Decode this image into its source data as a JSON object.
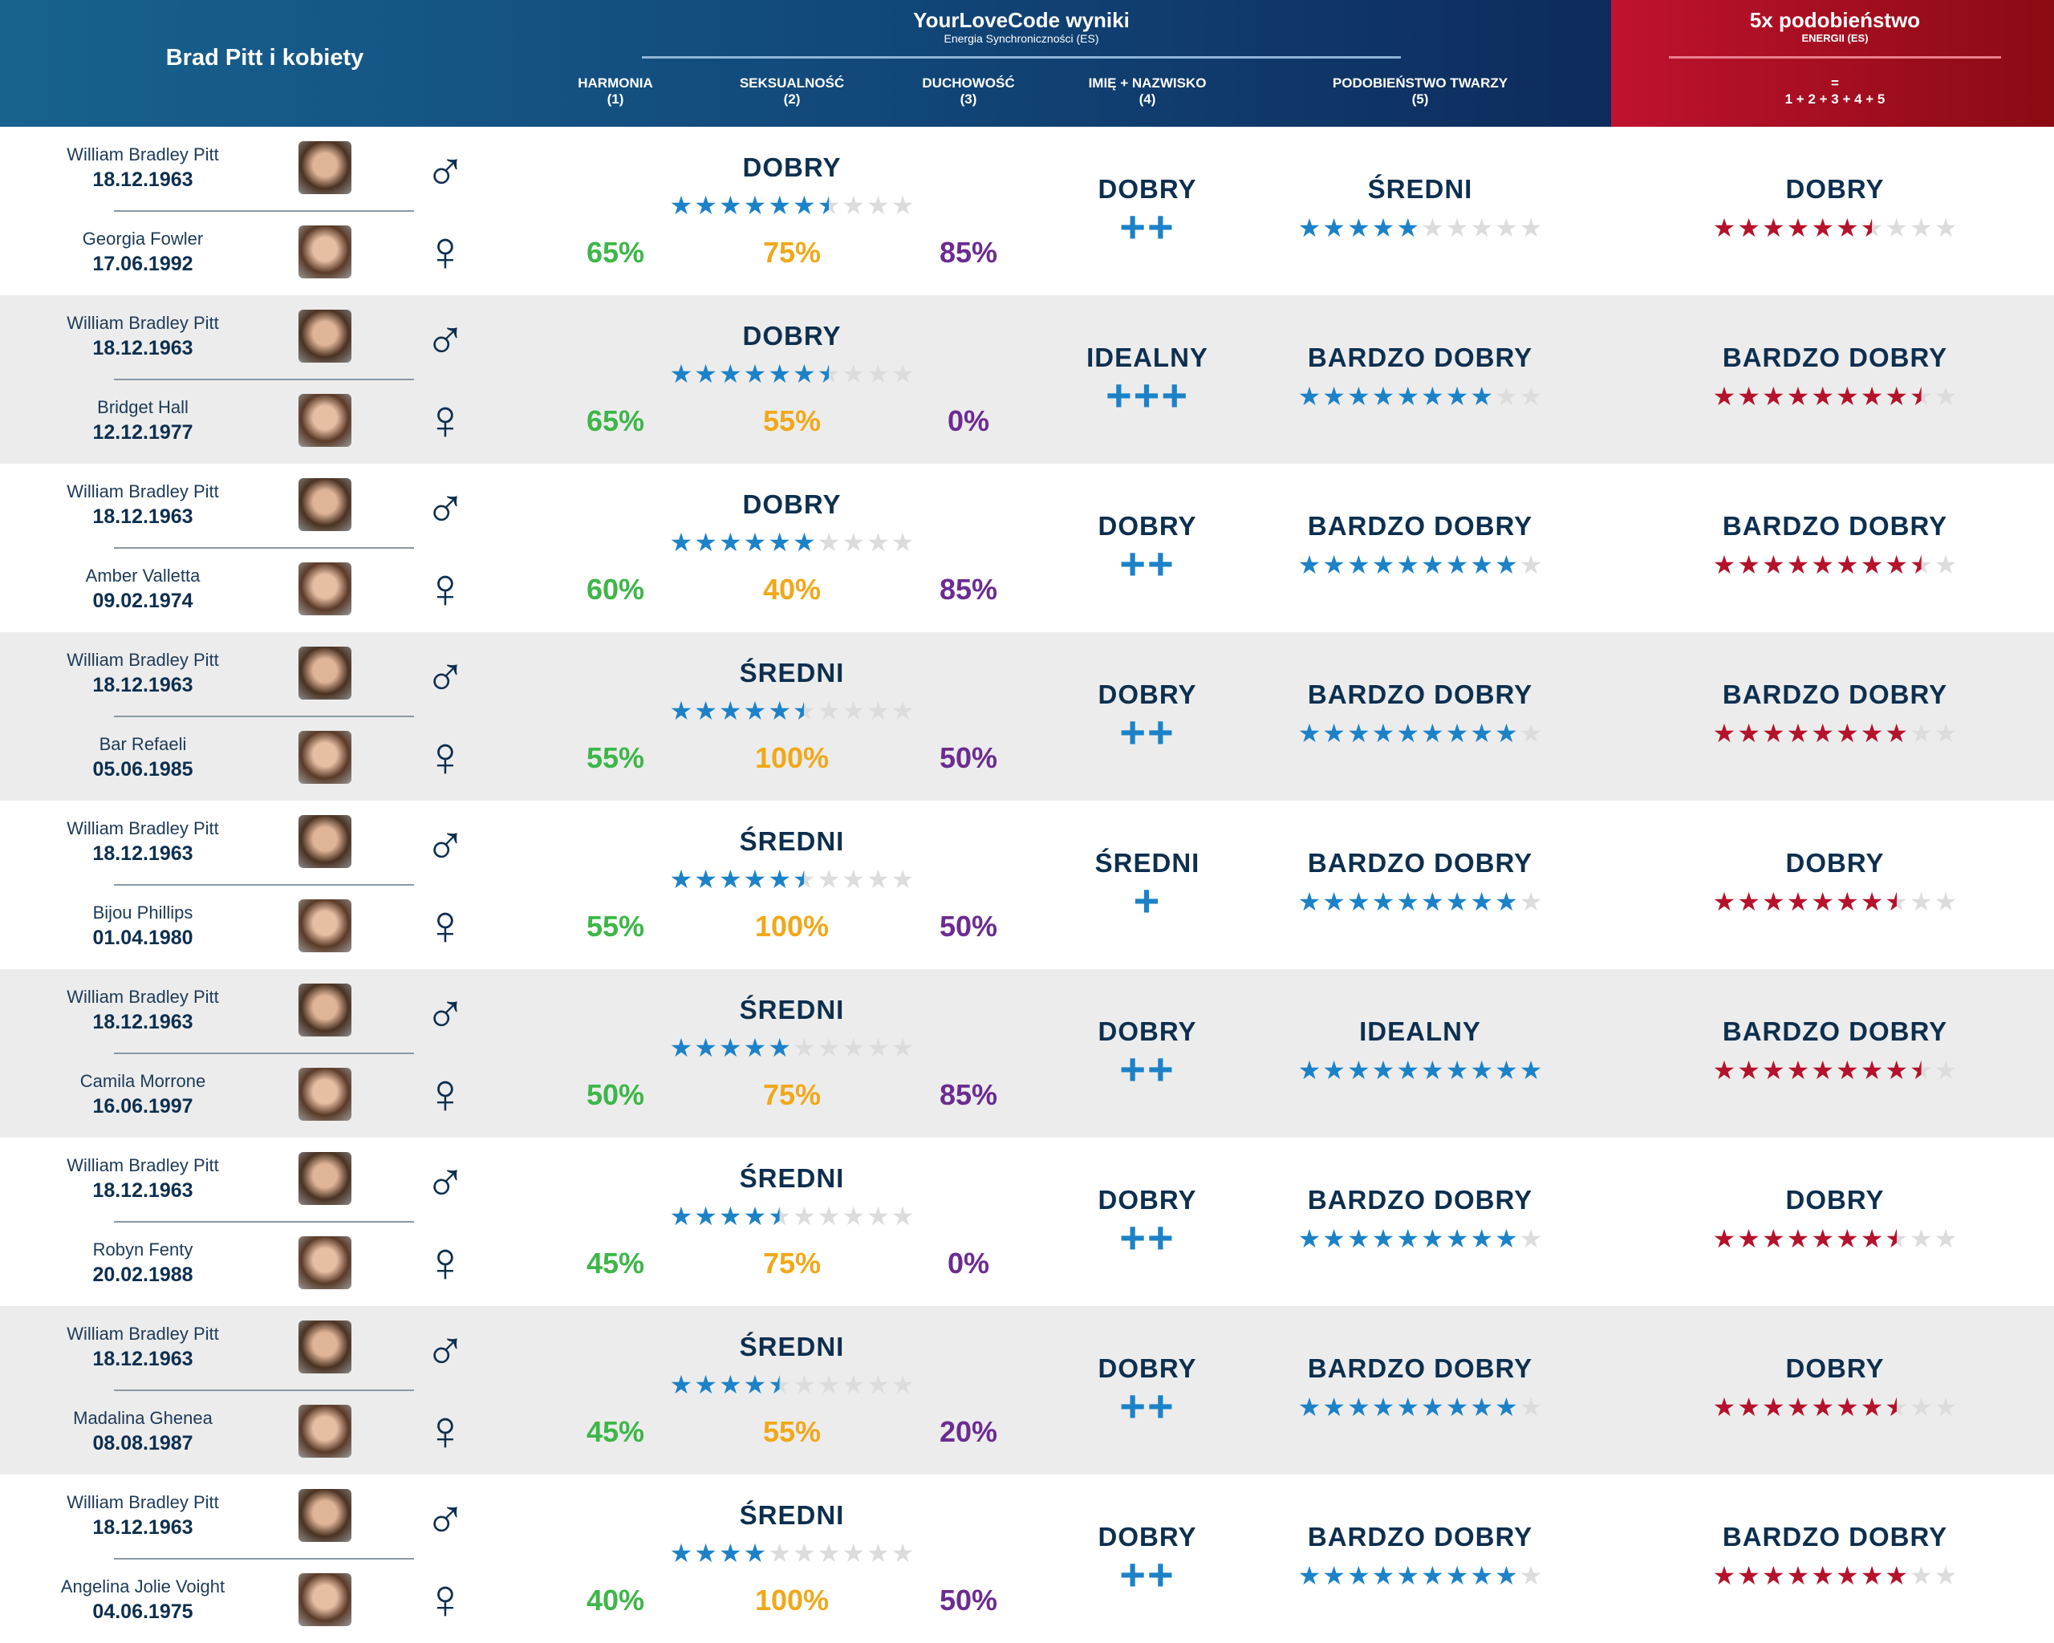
{
  "header": {
    "main_title": "Brad Pitt i kobiety",
    "results_title": "YourLoveCode wyniki",
    "results_subtitle": "Energia Synchroniczności (ES)",
    "columns": [
      {
        "label": "HARMONIA",
        "num": "(1)"
      },
      {
        "label": "SEKSUALNOŚĆ",
        "num": "(2)"
      },
      {
        "label": "DUCHOWOŚĆ",
        "num": "(3)"
      },
      {
        "label": "IMIĘ + NAZWISKO",
        "num": "(4)"
      },
      {
        "label": "PODOBIEŃSTWO TWARZY",
        "num": "(5)"
      }
    ],
    "total_title": "5x podobieństwo",
    "total_subtitle": "ENERGII (ES)",
    "total_eq": "=",
    "total_formula": "1 + 2 + 3 + 4 + 5"
  },
  "colors": {
    "harmony": "#3db649",
    "sexuality": "#f0a81a",
    "spirituality": "#6b2c91",
    "blue_star": "#1c82c8",
    "red_star": "#b5122b",
    "empty_star": "#dcdcdc"
  },
  "man": {
    "name": "William Bradley Pitt",
    "date": "18.12.1963",
    "symbol": "♂"
  },
  "woman_symbol": "♀",
  "rows": [
    {
      "woman": "Georgia Fowler",
      "date": "17.06.1992",
      "sync_label": "DOBRY",
      "sync_stars": 6.5,
      "harmonia": "65%",
      "seks": "75%",
      "duch": "85%",
      "name_label": "DOBRY",
      "name_plus": "++",
      "face_label": "ŚREDNI",
      "face_stars": 5,
      "total_label": "DOBRY",
      "total_stars": 6.5
    },
    {
      "woman": "Bridget Hall",
      "date": "12.12.1977",
      "sync_label": "DOBRY",
      "sync_stars": 6.5,
      "harmonia": "65%",
      "seks": "55%",
      "duch": "0%",
      "name_label": "IDEALNY",
      "name_plus": "+++",
      "face_label": "BARDZO DOBRY",
      "face_stars": 8,
      "total_label": "BARDZO DOBRY",
      "total_stars": 8.5
    },
    {
      "woman": "Amber Valletta",
      "date": "09.02.1974",
      "sync_label": "DOBRY",
      "sync_stars": 6,
      "harmonia": "60%",
      "seks": "40%",
      "duch": "85%",
      "name_label": "DOBRY",
      "name_plus": "++",
      "face_label": "BARDZO DOBRY",
      "face_stars": 9,
      "total_label": "BARDZO DOBRY",
      "total_stars": 8.5
    },
    {
      "woman": "Bar Refaeli",
      "date": "05.06.1985",
      "sync_label": "ŚREDNI",
      "sync_stars": 5.5,
      "harmonia": "55%",
      "seks": "100%",
      "duch": "50%",
      "name_label": "DOBRY",
      "name_plus": "++",
      "face_label": "BARDZO DOBRY",
      "face_stars": 9,
      "total_label": "BARDZO DOBRY",
      "total_stars": 8
    },
    {
      "woman": "Bijou Phillips",
      "date": "01.04.1980",
      "sync_label": "ŚREDNI",
      "sync_stars": 5.5,
      "harmonia": "55%",
      "seks": "100%",
      "duch": "50%",
      "name_label": "ŚREDNI",
      "name_plus": "+",
      "face_label": "BARDZO DOBRY",
      "face_stars": 9,
      "total_label": "DOBRY",
      "total_stars": 7.5
    },
    {
      "woman": "Camila Morrone",
      "date": "16.06.1997",
      "sync_label": "ŚREDNI",
      "sync_stars": 5,
      "harmonia": "50%",
      "seks": "75%",
      "duch": "85%",
      "name_label": "DOBRY",
      "name_plus": "++",
      "face_label": "IDEALNY",
      "face_stars": 10,
      "total_label": "BARDZO DOBRY",
      "total_stars": 8.5
    },
    {
      "woman": "Robyn Fenty",
      "date": "20.02.1988",
      "sync_label": "ŚREDNI",
      "sync_stars": 4.5,
      "harmonia": "45%",
      "seks": "75%",
      "duch": "0%",
      "name_label": "DOBRY",
      "name_plus": "++",
      "face_label": "BARDZO DOBRY",
      "face_stars": 9,
      "total_label": "DOBRY",
      "total_stars": 7.5
    },
    {
      "woman": "Madalina Ghenea",
      "date": "08.08.1987",
      "sync_label": "ŚREDNI",
      "sync_stars": 4.5,
      "harmonia": "45%",
      "seks": "55%",
      "duch": "20%",
      "name_label": "DOBRY",
      "name_plus": "++",
      "face_label": "BARDZO DOBRY",
      "face_stars": 9,
      "total_label": "DOBRY",
      "total_stars": 7.5
    },
    {
      "woman": "Angelina Jolie Voight",
      "date": "04.06.1975",
      "sync_label": "ŚREDNI",
      "sync_stars": 4,
      "harmonia": "40%",
      "seks": "100%",
      "duch": "50%",
      "name_label": "DOBRY",
      "name_plus": "++",
      "face_label": "BARDZO DOBRY",
      "face_stars": 9,
      "total_label": "BARDZO DOBRY",
      "total_stars": 8
    }
  ]
}
